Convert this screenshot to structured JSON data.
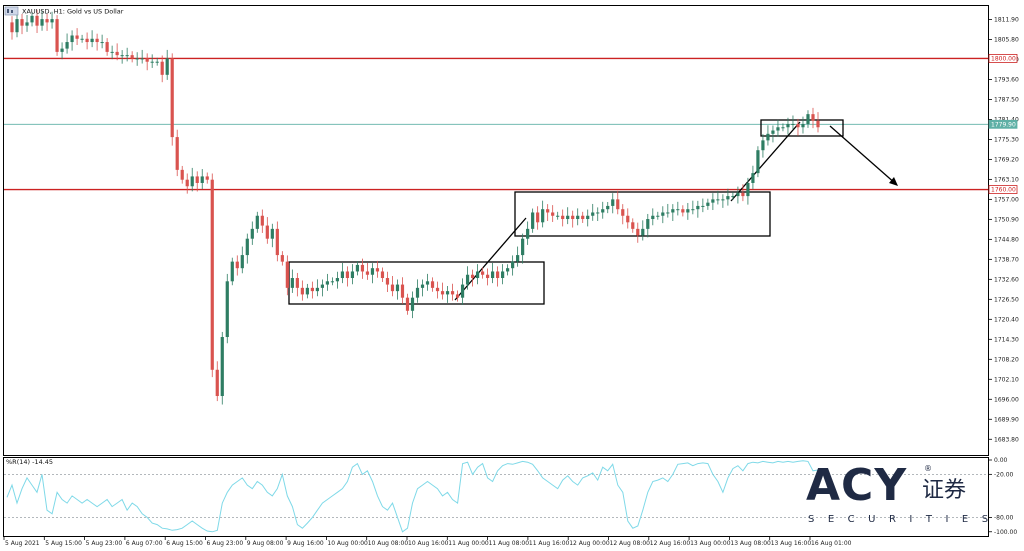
{
  "window": {
    "title": "XAUUSD, H1:  Gold vs US Dollar",
    "icon": "chart-window-icon"
  },
  "colors": {
    "bull": "#2e7d63",
    "bear": "#d9534f",
    "grid": "#e6e6e6",
    "axis": "#000000",
    "level_red": "#cc2222",
    "level_teal": "#5fb0a6",
    "rsi_line": "#7fd9e8",
    "rsi_levels": "#9aa0a6",
    "logo": "#1f2a44"
  },
  "price_scale": {
    "labels": [
      "1811.90",
      "1805.80",
      "1799.70",
      "1793.60",
      "1787.50",
      "1781.40",
      "1775.30",
      "1769.20",
      "1763.10",
      "1757.00",
      "1750.90",
      "1744.80",
      "1738.70",
      "1732.60",
      "1726.50",
      "1720.40",
      "1714.30",
      "1708.20",
      "1702.10",
      "1696.00",
      "1689.90",
      "1683.80"
    ],
    "tags": [
      {
        "label": "1800.00",
        "kind": "red"
      },
      {
        "label": "1779.90",
        "kind": "teal"
      },
      {
        "label": "1760.00",
        "kind": "red"
      }
    ]
  },
  "time_axis": {
    "labels": [
      "5 Aug 2021",
      "5 Aug 15:00",
      "5 Aug 23:00",
      "6 Aug 07:00",
      "6 Aug 15:00",
      "6 Aug 23:00",
      "9 Aug 08:00",
      "9 Aug 16:00",
      "10 Aug 00:00",
      "10 Aug 08:00",
      "10 Aug 16:00",
      "11 Aug 00:00",
      "11 Aug 08:00",
      "11 Aug 16:00",
      "12 Aug 00:00",
      "12 Aug 08:00",
      "12 Aug 16:00",
      "13 Aug 00:00",
      "13 Aug 08:00",
      "13 Aug 16:00",
      "16 Aug 01:00"
    ]
  },
  "indicator": {
    "title": "%R(14) -14.45",
    "scale_labels": [
      "0.00",
      "-20.00",
      "-80.00",
      "-100.00"
    ]
  },
  "logo": {
    "name": "ACY",
    "cn": "证券",
    "sub": "SECURITIES",
    "reg": "®"
  },
  "chart_data": {
    "type": "candlestick",
    "title": "XAUUSD, H1:  Gold vs US Dollar",
    "ylim": [
      1679,
      1816
    ],
    "levels": [
      1800.0,
      1779.9,
      1760.0
    ],
    "close_path": [
      [
        0,
        1811
      ],
      [
        5,
        1808
      ],
      [
        10,
        1812
      ],
      [
        15,
        1810
      ],
      [
        20,
        1811
      ],
      [
        25,
        1813
      ],
      [
        30,
        1810
      ],
      [
        35,
        1812
      ],
      [
        40,
        1811
      ],
      [
        45,
        1812
      ],
      [
        50,
        1802
      ],
      [
        55,
        1803
      ],
      [
        60,
        1805
      ],
      [
        65,
        1807
      ],
      [
        70,
        1806
      ],
      [
        75,
        1806
      ],
      [
        80,
        1805
      ],
      [
        85,
        1806
      ],
      [
        90,
        1805
      ],
      [
        95,
        1805
      ],
      [
        100,
        1802
      ],
      [
        105,
        1802
      ],
      [
        110,
        1801
      ],
      [
        115,
        1801
      ],
      [
        120,
        1801
      ],
      [
        125,
        1800
      ],
      [
        130,
        1800
      ],
      [
        135,
        1800
      ],
      [
        140,
        1799
      ],
      [
        145,
        1799
      ],
      [
        150,
        1799
      ],
      [
        155,
        1795
      ],
      [
        160,
        1800
      ],
      [
        165,
        1776
      ],
      [
        170,
        1766
      ],
      [
        175,
        1763
      ],
      [
        180,
        1761
      ],
      [
        185,
        1764
      ],
      [
        190,
        1762
      ],
      [
        195,
        1764
      ],
      [
        200,
        1763
      ],
      [
        205,
        1705
      ],
      [
        210,
        1697
      ],
      [
        215,
        1715
      ],
      [
        220,
        1732
      ],
      [
        225,
        1738
      ],
      [
        230,
        1736
      ],
      [
        235,
        1740
      ],
      [
        240,
        1745
      ],
      [
        245,
        1748
      ],
      [
        250,
        1752
      ],
      [
        255,
        1749
      ],
      [
        260,
        1745
      ],
      [
        265,
        1748
      ],
      [
        270,
        1740
      ],
      [
        275,
        1738
      ],
      [
        280,
        1730
      ],
      [
        285,
        1733
      ],
      [
        290,
        1730
      ],
      [
        295,
        1728
      ],
      [
        300,
        1730
      ],
      [
        305,
        1729
      ],
      [
        310,
        1730
      ],
      [
        315,
        1731
      ],
      [
        320,
        1732
      ],
      [
        325,
        1732
      ],
      [
        330,
        1733
      ],
      [
        335,
        1735
      ],
      [
        340,
        1733
      ],
      [
        345,
        1735
      ],
      [
        350,
        1737
      ],
      [
        355,
        1735
      ],
      [
        360,
        1734
      ],
      [
        365,
        1736
      ],
      [
        370,
        1735
      ],
      [
        375,
        1733
      ],
      [
        380,
        1731
      ],
      [
        385,
        1729
      ],
      [
        390,
        1731
      ],
      [
        395,
        1727
      ],
      [
        400,
        1723
      ],
      [
        405,
        1727
      ],
      [
        410,
        1730
      ],
      [
        415,
        1731
      ],
      [
        420,
        1732
      ],
      [
        425,
        1730
      ],
      [
        430,
        1729
      ],
      [
        435,
        1728
      ],
      [
        440,
        1729
      ],
      [
        445,
        1728
      ],
      [
        450,
        1727
      ],
      [
        455,
        1731
      ],
      [
        460,
        1734
      ],
      [
        465,
        1733
      ],
      [
        470,
        1735
      ],
      [
        475,
        1734
      ],
      [
        480,
        1733
      ],
      [
        485,
        1735
      ],
      [
        490,
        1733
      ],
      [
        495,
        1735
      ],
      [
        500,
        1736
      ],
      [
        505,
        1738
      ],
      [
        510,
        1740
      ],
      [
        515,
        1745
      ],
      [
        520,
        1748
      ],
      [
        525,
        1753
      ],
      [
        530,
        1750
      ],
      [
        535,
        1754
      ],
      [
        540,
        1753
      ],
      [
        545,
        1752
      ],
      [
        550,
        1752
      ],
      [
        555,
        1751
      ],
      [
        560,
        1752
      ],
      [
        565,
        1751
      ],
      [
        570,
        1752
      ],
      [
        575,
        1751
      ],
      [
        580,
        1752
      ],
      [
        585,
        1753
      ],
      [
        590,
        1753
      ],
      [
        595,
        1754
      ],
      [
        600,
        1755
      ],
      [
        605,
        1757
      ],
      [
        610,
        1754
      ],
      [
        615,
        1752
      ],
      [
        620,
        1750
      ],
      [
        625,
        1748
      ],
      [
        630,
        1746
      ],
      [
        635,
        1748
      ],
      [
        640,
        1751
      ],
      [
        645,
        1752
      ],
      [
        650,
        1752
      ],
      [
        655,
        1753
      ],
      [
        660,
        1753
      ],
      [
        665,
        1754
      ],
      [
        670,
        1754
      ],
      [
        675,
        1753
      ],
      [
        680,
        1754
      ],
      [
        685,
        1754
      ],
      [
        690,
        1755
      ],
      [
        695,
        1755
      ],
      [
        700,
        1756
      ],
      [
        705,
        1757
      ],
      [
        710,
        1757
      ],
      [
        715,
        1757
      ],
      [
        720,
        1758
      ],
      [
        725,
        1758
      ],
      [
        730,
        1759
      ],
      [
        735,
        1758
      ],
      [
        740,
        1762
      ],
      [
        745,
        1765
      ],
      [
        750,
        1772
      ],
      [
        755,
        1775
      ],
      [
        760,
        1777
      ],
      [
        765,
        1778
      ],
      [
        770,
        1779
      ],
      [
        775,
        1779
      ],
      [
        780,
        1780
      ],
      [
        785,
        1780
      ],
      [
        790,
        1779
      ],
      [
        795,
        1780
      ],
      [
        800,
        1783
      ],
      [
        805,
        1781
      ],
      [
        810,
        1779
      ]
    ],
    "rsi_path": [
      [
        0,
        -52
      ],
      [
        5,
        -35
      ],
      [
        10,
        -60
      ],
      [
        15,
        -40
      ],
      [
        20,
        -25
      ],
      [
        25,
        -35
      ],
      [
        30,
        -45
      ],
      [
        35,
        -20
      ],
      [
        40,
        -70
      ],
      [
        45,
        -75
      ],
      [
        50,
        -45
      ],
      [
        55,
        -55
      ],
      [
        60,
        -60
      ],
      [
        65,
        -50
      ],
      [
        70,
        -55
      ],
      [
        75,
        -60
      ],
      [
        80,
        -55
      ],
      [
        85,
        -60
      ],
      [
        90,
        -65
      ],
      [
        95,
        -60
      ],
      [
        100,
        -55
      ],
      [
        105,
        -65
      ],
      [
        110,
        -60
      ],
      [
        115,
        -55
      ],
      [
        120,
        -70
      ],
      [
        125,
        -60
      ],
      [
        130,
        -65
      ],
      [
        135,
        -75
      ],
      [
        140,
        -80
      ],
      [
        145,
        -88
      ],
      [
        150,
        -90
      ],
      [
        155,
        -95
      ],
      [
        160,
        -96
      ],
      [
        165,
        -98
      ],
      [
        170,
        -97
      ],
      [
        175,
        -95
      ],
      [
        180,
        -90
      ],
      [
        185,
        -85
      ],
      [
        190,
        -90
      ],
      [
        195,
        -95
      ],
      [
        200,
        -99
      ],
      [
        205,
        -100
      ],
      [
        210,
        -98
      ],
      [
        215,
        -60
      ],
      [
        220,
        -45
      ],
      [
        225,
        -35
      ],
      [
        230,
        -30
      ],
      [
        235,
        -25
      ],
      [
        240,
        -35
      ],
      [
        245,
        -40
      ],
      [
        250,
        -30
      ],
      [
        255,
        -35
      ],
      [
        260,
        -45
      ],
      [
        265,
        -50
      ],
      [
        270,
        -40
      ],
      [
        275,
        -20
      ],
      [
        280,
        -50
      ],
      [
        285,
        -65
      ],
      [
        290,
        -90
      ],
      [
        295,
        -95
      ],
      [
        300,
        -88
      ],
      [
        305,
        -80
      ],
      [
        310,
        -70
      ],
      [
        315,
        -60
      ],
      [
        320,
        -55
      ],
      [
        325,
        -50
      ],
      [
        330,
        -45
      ],
      [
        335,
        -40
      ],
      [
        340,
        -30
      ],
      [
        345,
        -10
      ],
      [
        350,
        -5
      ],
      [
        355,
        -20
      ],
      [
        360,
        -15
      ],
      [
        365,
        -30
      ],
      [
        370,
        -50
      ],
      [
        375,
        -65
      ],
      [
        380,
        -70
      ],
      [
        385,
        -60
      ],
      [
        390,
        -80
      ],
      [
        395,
        -100
      ],
      [
        400,
        -95
      ],
      [
        405,
        -60
      ],
      [
        410,
        -40
      ],
      [
        415,
        -35
      ],
      [
        420,
        -30
      ],
      [
        425,
        -35
      ],
      [
        430,
        -40
      ],
      [
        435,
        -50
      ],
      [
        440,
        -45
      ],
      [
        445,
        -55
      ],
      [
        450,
        -60
      ],
      [
        455,
        -5
      ],
      [
        460,
        -3
      ],
      [
        465,
        -20
      ],
      [
        470,
        -10
      ],
      [
        475,
        -5
      ],
      [
        480,
        -25
      ],
      [
        485,
        -30
      ],
      [
        490,
        -15
      ],
      [
        495,
        -8
      ],
      [
        500,
        -5
      ],
      [
        505,
        -6
      ],
      [
        510,
        -4
      ],
      [
        515,
        -2
      ],
      [
        520,
        -3
      ],
      [
        525,
        -6
      ],
      [
        530,
        -15
      ],
      [
        535,
        -25
      ],
      [
        540,
        -30
      ],
      [
        545,
        -35
      ],
      [
        550,
        -40
      ],
      [
        555,
        -28
      ],
      [
        560,
        -22
      ],
      [
        565,
        -30
      ],
      [
        570,
        -35
      ],
      [
        575,
        -25
      ],
      [
        580,
        -22
      ],
      [
        585,
        -18
      ],
      [
        590,
        -28
      ],
      [
        595,
        -10
      ],
      [
        600,
        -15
      ],
      [
        605,
        -6
      ],
      [
        610,
        -35
      ],
      [
        615,
        -45
      ],
      [
        620,
        -85
      ],
      [
        625,
        -95
      ],
      [
        630,
        -92
      ],
      [
        635,
        -70
      ],
      [
        640,
        -45
      ],
      [
        645,
        -30
      ],
      [
        650,
        -28
      ],
      [
        655,
        -25
      ],
      [
        660,
        -30
      ],
      [
        665,
        -20
      ],
      [
        670,
        -6
      ],
      [
        675,
        -5
      ],
      [
        680,
        -4
      ],
      [
        685,
        -8
      ],
      [
        690,
        -5
      ],
      [
        695,
        -4
      ],
      [
        700,
        -5
      ],
      [
        705,
        -20
      ],
      [
        710,
        -30
      ],
      [
        715,
        -45
      ],
      [
        720,
        -25
      ],
      [
        725,
        -12
      ],
      [
        730,
        -8
      ],
      [
        735,
        -15
      ],
      [
        740,
        -5
      ],
      [
        745,
        -3
      ],
      [
        750,
        -4
      ],
      [
        755,
        -2
      ],
      [
        760,
        -3
      ],
      [
        765,
        -4
      ],
      [
        770,
        -2
      ],
      [
        775,
        -3
      ],
      [
        780,
        -2
      ],
      [
        785,
        -3
      ],
      [
        790,
        -2
      ],
      [
        795,
        -1
      ],
      [
        800,
        -2
      ],
      [
        805,
        -15
      ],
      [
        810,
        -14
      ]
    ]
  }
}
